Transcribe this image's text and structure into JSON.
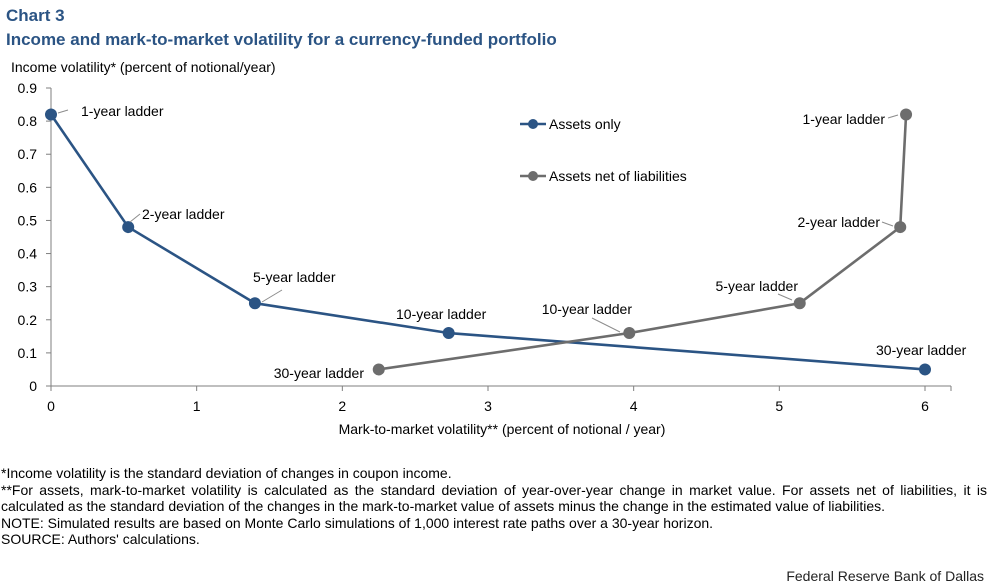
{
  "header": {
    "label": "Chart 3",
    "title": "Income and mark-to-market volatility for a currency-funded portfolio"
  },
  "chart_data": {
    "type": "line",
    "title": "Income and mark-to-market volatility for a currency-funded portfolio",
    "ylabel": "Income volatility* (percent of notional/year)",
    "xlabel": "Mark-to-market volatility** (percent of notional / year)",
    "xlim": [
      0,
      6
    ],
    "ylim": [
      0,
      0.9
    ],
    "xticks": [
      "0",
      "1",
      "2",
      "3",
      "4",
      "5",
      "6"
    ],
    "yticks": [
      "0",
      "0.1",
      "0.2",
      "0.3",
      "0.4",
      "0.5",
      "0.6",
      "0.7",
      "0.8",
      "0.9"
    ],
    "grid": false,
    "legend": "inside-top-center",
    "series": [
      {
        "name": "Assets only",
        "color": "#2b5484",
        "points": [
          {
            "x": 0.0,
            "y": 0.82,
            "label": "1-year ladder"
          },
          {
            "x": 0.53,
            "y": 0.48,
            "label": "2-year ladder"
          },
          {
            "x": 1.4,
            "y": 0.25,
            "label": "5-year ladder"
          },
          {
            "x": 2.73,
            "y": 0.16,
            "label": "10-year ladder"
          },
          {
            "x": 6.0,
            "y": 0.05,
            "label": "30-year ladder"
          }
        ]
      },
      {
        "name": "Assets net of liabilities",
        "color": "#6d6d6d",
        "points": [
          {
            "x": 5.87,
            "y": 0.82,
            "label": "1-year ladder"
          },
          {
            "x": 5.83,
            "y": 0.48,
            "label": "2-year ladder"
          },
          {
            "x": 5.14,
            "y": 0.25,
            "label": "5-year ladder"
          },
          {
            "x": 3.97,
            "y": 0.16,
            "label": "10-year ladder"
          },
          {
            "x": 2.25,
            "y": 0.05,
            "label": "30-year ladder"
          }
        ]
      }
    ]
  },
  "notes": {
    "income_note": "*Income volatility is the standard deviation of changes in coupon income.",
    "mtm_note": "**For assets, mark-to-market volatility is calculated as the standard deviation of year-over-year change in market value. For assets net of liabilities, it is calculated as the standard deviation of the changes in the mark-to-market value of assets minus the change in the estimated value of liabilities.",
    "note": "NOTE: Simulated results are based on Monte Carlo simulations of 1,000 interest rate paths over a 30-year horizon.",
    "source": "SOURCE: Authors' calculations."
  },
  "credit": "Federal Reserve Bank of Dallas"
}
